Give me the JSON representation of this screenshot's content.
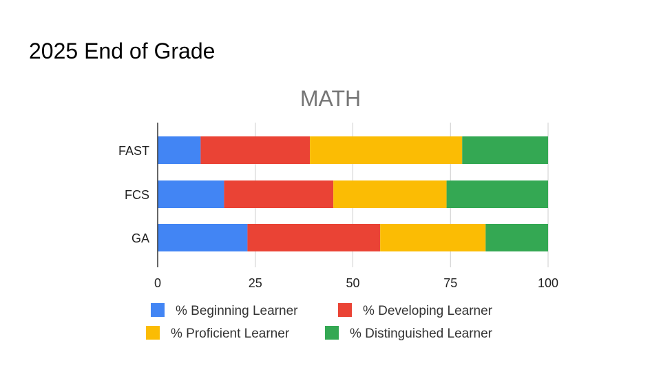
{
  "slide": {
    "title": "2025 End of Grade"
  },
  "chart_data": {
    "type": "bar",
    "orientation": "horizontal",
    "stacked": true,
    "title": "MATH",
    "categories": [
      "FAST",
      "FCS",
      "GA"
    ],
    "series": [
      {
        "name": "% Beginning Learner",
        "color": "#4285F4",
        "values": [
          11,
          17,
          23
        ]
      },
      {
        "name": "% Developing Learner",
        "color": "#EA4335",
        "values": [
          28,
          28,
          34
        ]
      },
      {
        "name": "% Proficient Learner",
        "color": "#FBBC04",
        "values": [
          39,
          29,
          27
        ]
      },
      {
        "name": "% Distinguished Learner",
        "color": "#34A853",
        "values": [
          22,
          26,
          16
        ]
      }
    ],
    "xlim": [
      0,
      100
    ],
    "xticks": [
      "0",
      "25",
      "50",
      "75",
      "100"
    ],
    "xlabel": "",
    "ylabel": "",
    "grid": true,
    "legend_position": "bottom"
  }
}
